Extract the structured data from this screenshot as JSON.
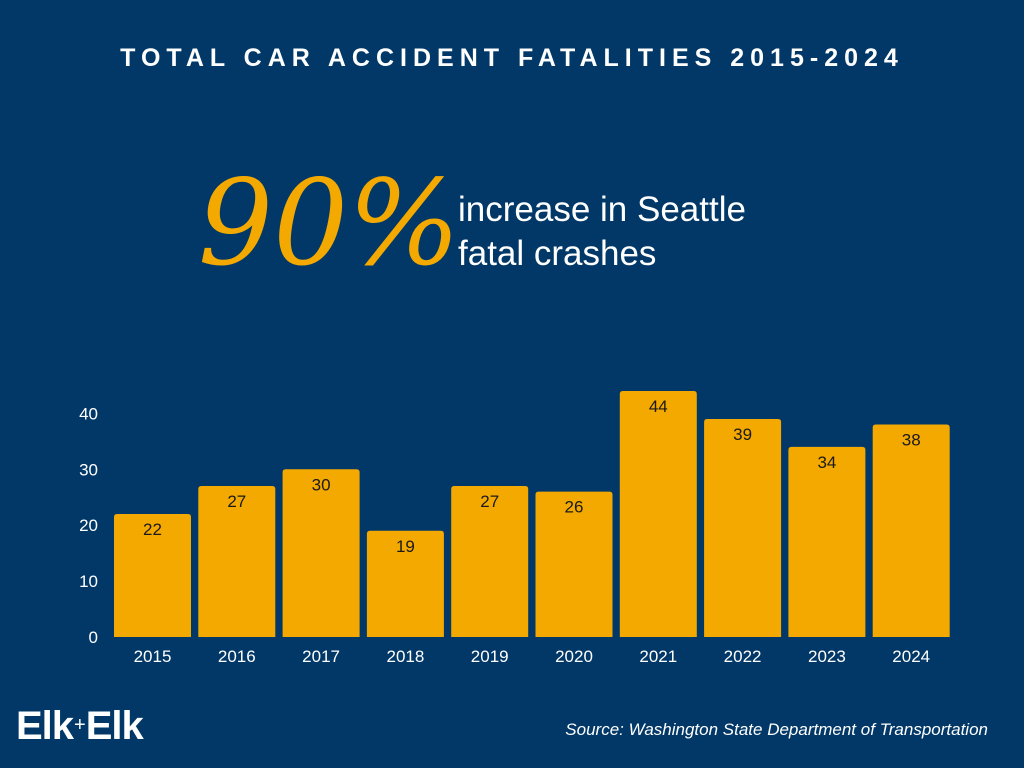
{
  "header": {
    "title": "TOTAL CAR ACCIDENT FATALITIES 2015-2024"
  },
  "highlight": {
    "value": "90%",
    "line1": "increase in Seattle",
    "line2": "fatal crashes"
  },
  "logo": {
    "left": "Elk",
    "plus": "+",
    "right": "Elk"
  },
  "source": "Source: Washington State Department of Transportation",
  "colors": {
    "background": "#013867",
    "bar": "#f4a900",
    "text": "#ffffff",
    "label": "#1a1a1a"
  },
  "chart_data": {
    "type": "bar",
    "title": "",
    "xlabel": "",
    "ylabel": "",
    "categories": [
      "2015",
      "2016",
      "2017",
      "2018",
      "2019",
      "2020",
      "2021",
      "2022",
      "2023",
      "2024"
    ],
    "values": [
      22,
      27,
      30,
      19,
      27,
      26,
      44,
      39,
      34,
      38
    ],
    "yticks": [
      0,
      10,
      20,
      30,
      40
    ],
    "ylim": [
      0,
      44
    ],
    "grid": false,
    "data_labels": true
  }
}
